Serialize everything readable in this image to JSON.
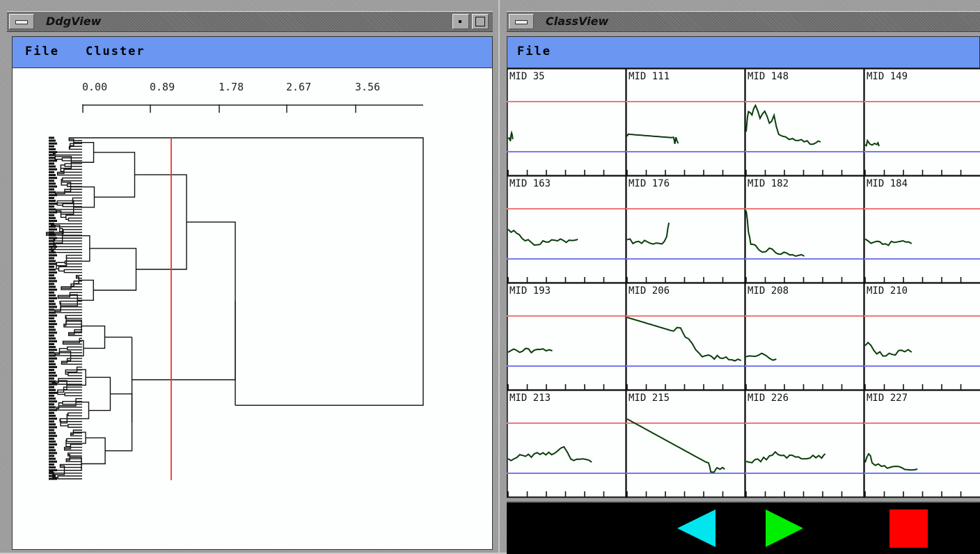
{
  "ddgview": {
    "title": "DdgView",
    "menu": [
      "File",
      "Cluster"
    ],
    "scale_ticks": [
      "0.00",
      "0.89",
      "1.78",
      "2.67",
      "3.56"
    ],
    "cutoff_color": "#ee3333"
  },
  "classview": {
    "title": "ClassView",
    "menu": [
      "File"
    ],
    "upper_line_color": "#f07878",
    "lower_line_color": "#7878f0",
    "trace_color": "#0b3d0b",
    "cells": [
      {
        "label": "MID 35"
      },
      {
        "label": "MID 111"
      },
      {
        "label": "MID 148"
      },
      {
        "label": "MID 149"
      },
      {
        "label": "MID 163"
      },
      {
        "label": "MID 176"
      },
      {
        "label": "MID 182"
      },
      {
        "label": "MID 184"
      },
      {
        "label": "MID 193"
      },
      {
        "label": "MID 206"
      },
      {
        "label": "MID 208"
      },
      {
        "label": "MID 210"
      },
      {
        "label": "MID 213"
      },
      {
        "label": "MID 215"
      },
      {
        "label": "MID 226"
      },
      {
        "label": "MID 227"
      }
    ],
    "controls": {
      "prev_icon": "left-triangle-icon",
      "prev_color": "#00e5ee",
      "next_icon": "right-triangle-icon",
      "next_color": "#00ee00",
      "stop_icon": "stop-square-icon",
      "stop_color": "#ff0000"
    }
  }
}
